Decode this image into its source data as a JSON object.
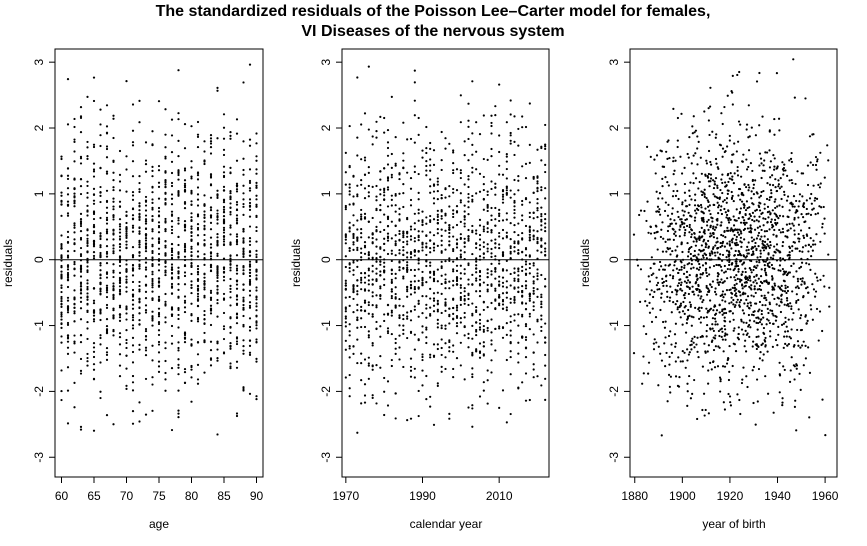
{
  "figure": {
    "title_line1": "The standardized residuals of the Poisson Lee–Carter model for females,",
    "title_line2": "VI Diseases of the nervous system"
  },
  "chart_data": [
    {
      "type": "scatter",
      "xlabel": "age",
      "ylabel": "residuals",
      "xlim": [
        59,
        91
      ],
      "ylim": [
        -3.3,
        3.2
      ],
      "xticks": [
        60,
        65,
        70,
        75,
        80,
        85,
        90
      ],
      "yticks": [
        -3,
        -2,
        -1,
        0,
        1,
        2,
        3
      ],
      "reference_line_y": 0,
      "x_domain": [
        60,
        90
      ],
      "x_discrete_step": 1,
      "points_per_x": 52,
      "x_center": 75,
      "residual_range": [
        -2.7,
        3.1
      ]
    },
    {
      "type": "scatter",
      "xlabel": "calendar year",
      "ylabel": "residuals",
      "xlim": [
        1969,
        2023
      ],
      "ylim": [
        -3.3,
        3.2
      ],
      "xticks": [
        1970,
        1990,
        2010
      ],
      "yticks": [
        -3,
        -2,
        -1,
        0,
        1,
        2,
        3
      ],
      "reference_line_y": 0,
      "x_domain": [
        1970,
        2022
      ],
      "x_discrete_step": 1,
      "points_per_x": 30,
      "x_center": 1996,
      "residual_range": [
        -2.7,
        3.1
      ]
    },
    {
      "type": "scatter",
      "xlabel": "year of birth",
      "ylabel": "residuals",
      "xlim": [
        1878,
        1965
      ],
      "ylim": [
        -3.3,
        3.2
      ],
      "xticks": [
        1880,
        1900,
        1920,
        1940,
        1960
      ],
      "yticks": [
        -3,
        -2,
        -1,
        0,
        1,
        2,
        3
      ],
      "reference_line_y": 0,
      "x_domain": [
        1880,
        1962
      ],
      "x_center": 1922,
      "residual_range": [
        -2.7,
        3.1
      ]
    }
  ]
}
